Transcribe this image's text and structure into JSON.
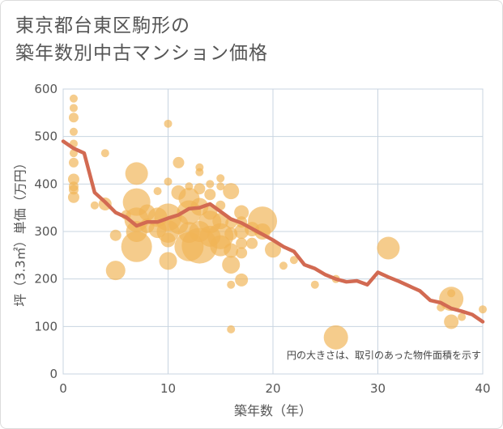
{
  "title_lines": [
    "東京都台東区駒形の",
    "築年数別中古マンション価格"
  ],
  "chart_data": {
    "type": "scatter",
    "xlabel": "築年数（年）",
    "ylabel": "坪（3.3㎡）単価（万円）",
    "xlim": [
      0,
      40
    ],
    "ylim": [
      0,
      600
    ],
    "x_ticks": [
      0,
      10,
      20,
      30,
      40
    ],
    "y_ticks": [
      0,
      100,
      200,
      300,
      400,
      500,
      600
    ],
    "grid": true,
    "annotation": "円の大きさは、取引のあった物件面積を示す",
    "colors": {
      "bubble": "#f0b455",
      "line": "#d26a52",
      "grid": "#c8d4e0"
    },
    "bubbles": [
      {
        "x": 1,
        "y": 580,
        "r": 5
      },
      {
        "x": 1,
        "y": 560,
        "r": 5
      },
      {
        "x": 1,
        "y": 540,
        "r": 6
      },
      {
        "x": 1,
        "y": 510,
        "r": 5
      },
      {
        "x": 1,
        "y": 485,
        "r": 5
      },
      {
        "x": 1,
        "y": 465,
        "r": 5
      },
      {
        "x": 1,
        "y": 445,
        "r": 6
      },
      {
        "x": 1,
        "y": 410,
        "r": 7
      },
      {
        "x": 1,
        "y": 395,
        "r": 6
      },
      {
        "x": 1,
        "y": 388,
        "r": 6
      },
      {
        "x": 1,
        "y": 372,
        "r": 7
      },
      {
        "x": 4,
        "y": 465,
        "r": 5
      },
      {
        "x": 4,
        "y": 358,
        "r": 8
      },
      {
        "x": 3,
        "y": 355,
        "r": 5
      },
      {
        "x": 5,
        "y": 292,
        "r": 7
      },
      {
        "x": 5,
        "y": 218,
        "r": 12
      },
      {
        "x": 6,
        "y": 335,
        "r": 6
      },
      {
        "x": 7,
        "y": 422,
        "r": 14
      },
      {
        "x": 7,
        "y": 362,
        "r": 17
      },
      {
        "x": 7,
        "y": 325,
        "r": 15
      },
      {
        "x": 7,
        "y": 300,
        "r": 13
      },
      {
        "x": 7,
        "y": 268,
        "r": 19
      },
      {
        "x": 8,
        "y": 340,
        "r": 10
      },
      {
        "x": 8,
        "y": 312,
        "r": 9
      },
      {
        "x": 9,
        "y": 330,
        "r": 12
      },
      {
        "x": 9,
        "y": 305,
        "r": 11
      },
      {
        "x": 9,
        "y": 385,
        "r": 5
      },
      {
        "x": 10,
        "y": 527,
        "r": 5
      },
      {
        "x": 10,
        "y": 405,
        "r": 5
      },
      {
        "x": 10,
        "y": 330,
        "r": 17
      },
      {
        "x": 10,
        "y": 300,
        "r": 14
      },
      {
        "x": 10,
        "y": 282,
        "r": 9
      },
      {
        "x": 10,
        "y": 238,
        "r": 11
      },
      {
        "x": 11,
        "y": 445,
        "r": 7
      },
      {
        "x": 11,
        "y": 382,
        "r": 9
      },
      {
        "x": 11,
        "y": 315,
        "r": 12
      },
      {
        "x": 12,
        "y": 395,
        "r": 5
      },
      {
        "x": 12,
        "y": 370,
        "r": 13
      },
      {
        "x": 12,
        "y": 340,
        "r": 15
      },
      {
        "x": 12,
        "y": 298,
        "r": 13
      },
      {
        "x": 12,
        "y": 268,
        "r": 18
      },
      {
        "x": 13,
        "y": 435,
        "r": 5
      },
      {
        "x": 13,
        "y": 425,
        "r": 5
      },
      {
        "x": 13,
        "y": 390,
        "r": 7
      },
      {
        "x": 13,
        "y": 352,
        "r": 11
      },
      {
        "x": 13,
        "y": 300,
        "r": 13
      },
      {
        "x": 13,
        "y": 270,
        "r": 22
      },
      {
        "x": 14,
        "y": 400,
        "r": 5
      },
      {
        "x": 14,
        "y": 378,
        "r": 7
      },
      {
        "x": 14,
        "y": 340,
        "r": 9
      },
      {
        "x": 14,
        "y": 320,
        "r": 14
      },
      {
        "x": 14,
        "y": 290,
        "r": 13
      },
      {
        "x": 15,
        "y": 412,
        "r": 5
      },
      {
        "x": 15,
        "y": 395,
        "r": 5
      },
      {
        "x": 15,
        "y": 355,
        "r": 6
      },
      {
        "x": 15,
        "y": 322,
        "r": 10
      },
      {
        "x": 15,
        "y": 290,
        "r": 16
      },
      {
        "x": 15,
        "y": 270,
        "r": 13
      },
      {
        "x": 16,
        "y": 385,
        "r": 10
      },
      {
        "x": 16,
        "y": 318,
        "r": 7
      },
      {
        "x": 16,
        "y": 295,
        "r": 8
      },
      {
        "x": 16,
        "y": 260,
        "r": 9
      },
      {
        "x": 16,
        "y": 230,
        "r": 11
      },
      {
        "x": 16,
        "y": 188,
        "r": 5
      },
      {
        "x": 16,
        "y": 94,
        "r": 5
      },
      {
        "x": 17,
        "y": 340,
        "r": 9
      },
      {
        "x": 17,
        "y": 320,
        "r": 7
      },
      {
        "x": 17,
        "y": 300,
        "r": 9
      },
      {
        "x": 17,
        "y": 275,
        "r": 7
      },
      {
        "x": 17,
        "y": 255,
        "r": 7
      },
      {
        "x": 17,
        "y": 198,
        "r": 8
      },
      {
        "x": 18,
        "y": 305,
        "r": 9
      },
      {
        "x": 18,
        "y": 275,
        "r": 7
      },
      {
        "x": 19,
        "y": 322,
        "r": 18
      },
      {
        "x": 19,
        "y": 300,
        "r": 10
      },
      {
        "x": 20,
        "y": 262,
        "r": 10
      },
      {
        "x": 21,
        "y": 228,
        "r": 5
      },
      {
        "x": 22,
        "y": 240,
        "r": 5
      },
      {
        "x": 24,
        "y": 188,
        "r": 5
      },
      {
        "x": 26,
        "y": 200,
        "r": 5
      },
      {
        "x": 26,
        "y": 77,
        "r": 15
      },
      {
        "x": 31,
        "y": 265,
        "r": 14
      },
      {
        "x": 36,
        "y": 140,
        "r": 5
      },
      {
        "x": 37,
        "y": 170,
        "r": 5
      },
      {
        "x": 37,
        "y": 158,
        "r": 15
      },
      {
        "x": 37,
        "y": 110,
        "r": 9
      },
      {
        "x": 38,
        "y": 120,
        "r": 5
      },
      {
        "x": 40,
        "y": 136,
        "r": 5
      }
    ],
    "average_line": {
      "x": [
        0,
        1,
        2,
        3,
        4,
        5,
        6,
        7,
        8,
        9,
        10,
        11,
        12,
        13,
        14,
        15,
        16,
        17,
        18,
        19,
        20,
        21,
        22,
        23,
        24,
        25,
        26,
        27,
        28,
        29,
        30,
        31,
        32,
        33,
        34,
        35,
        36,
        37,
        38,
        39,
        40
      ],
      "y": [
        490,
        475,
        465,
        382,
        362,
        340,
        330,
        312,
        320,
        320,
        328,
        335,
        348,
        350,
        358,
        342,
        326,
        318,
        306,
        294,
        282,
        268,
        258,
        230,
        222,
        209,
        200,
        194,
        196,
        188,
        214,
        204,
        195,
        185,
        175,
        155,
        150,
        138,
        132,
        125,
        110
      ]
    }
  }
}
